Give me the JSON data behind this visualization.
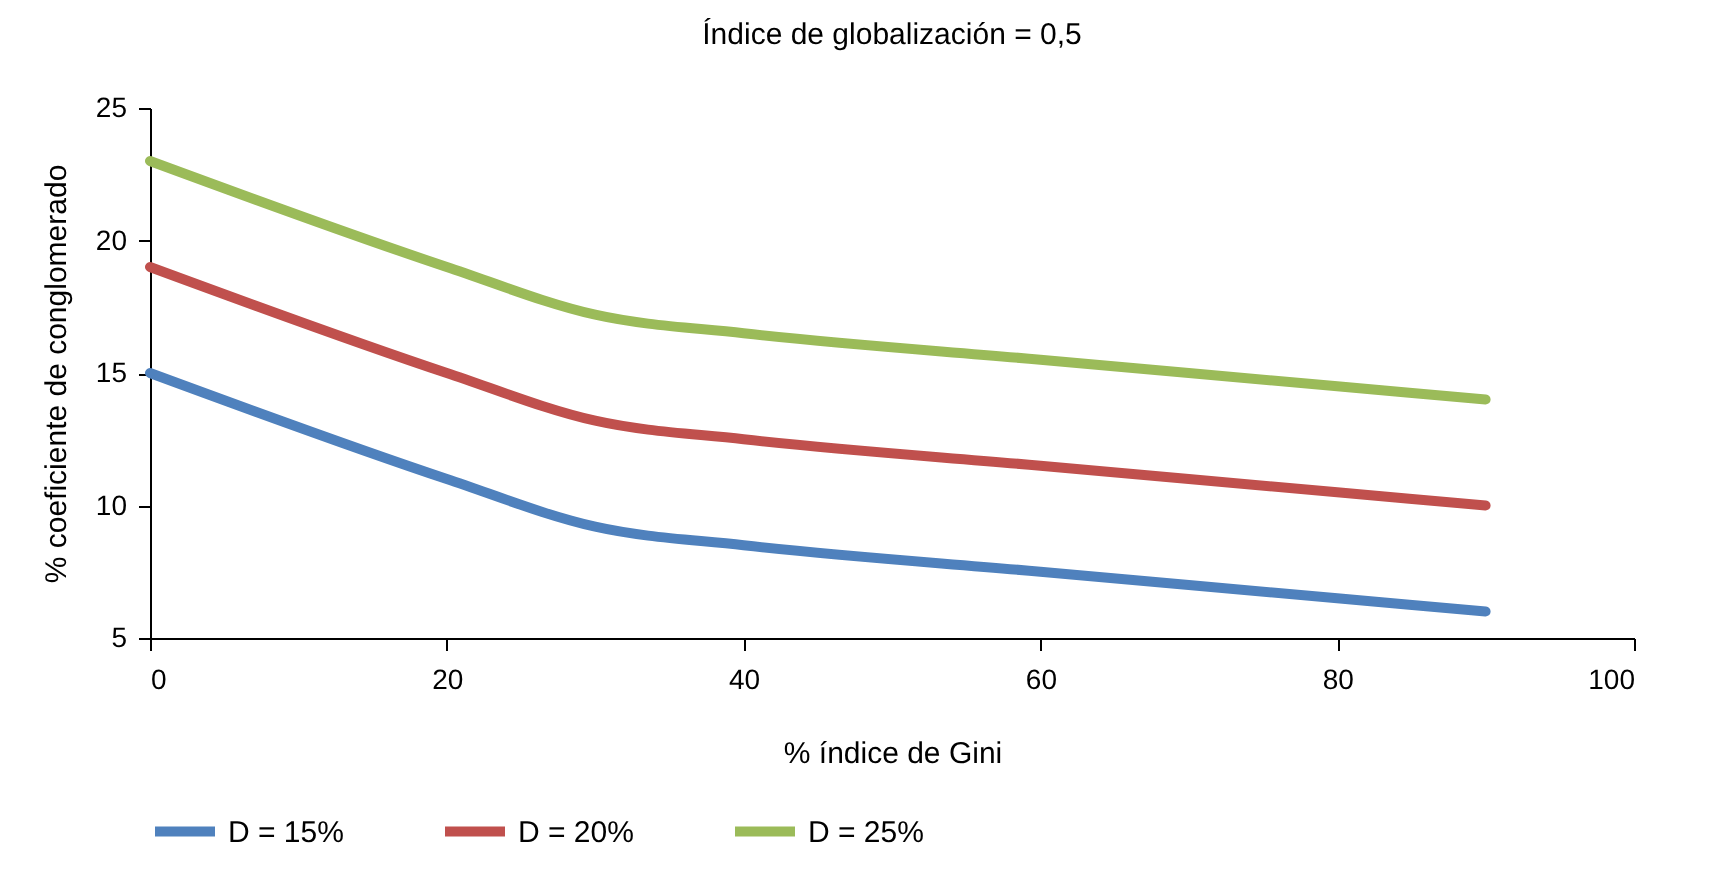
{
  "chart_data": {
    "type": "line",
    "title": "Índice de globalización = 0,5",
    "xlabel": "% índice de Gini",
    "ylabel": "% coeficiente de conglomerado",
    "x": [
      0,
      20,
      30,
      40,
      60,
      80,
      90
    ],
    "series": [
      {
        "name": "D = 15%",
        "color": "#4f81bd",
        "values": [
          15,
          11,
          9.2,
          8.5,
          7.5,
          6.5,
          6
        ]
      },
      {
        "name": "D = 20%",
        "color": "#c0504d",
        "values": [
          19,
          15,
          13.2,
          12.5,
          11.5,
          10.5,
          10
        ]
      },
      {
        "name": "D = 25%",
        "color": "#9bbb59",
        "values": [
          23,
          19,
          17.2,
          16.5,
          15.5,
          14.5,
          14
        ]
      }
    ],
    "xlim": [
      0,
      100
    ],
    "xticks": [
      0,
      20,
      40,
      60,
      80,
      100
    ],
    "ylim": [
      5,
      25
    ],
    "yticks": [
      5,
      10,
      15,
      20,
      25
    ],
    "grid": false,
    "legend": "bottom",
    "marker": "none",
    "line_style": "solid"
  }
}
